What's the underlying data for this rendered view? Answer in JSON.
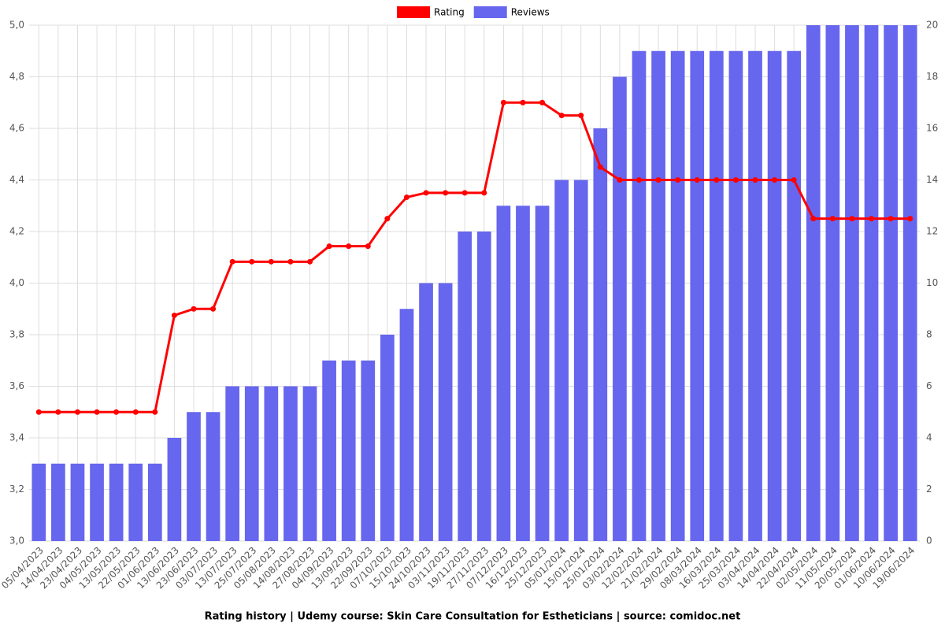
{
  "chart_data": {
    "type": "bar",
    "title": "Rating history | Udemy course: Skin Care Consultation for Estheticians | source: comidoc.net",
    "categories": [
      "05/04/2023",
      "14/04/2023",
      "23/04/2023",
      "04/05/2023",
      "13/05/2023",
      "22/05/2023",
      "01/06/2023",
      "13/06/2023",
      "23/06/2023",
      "03/07/2023",
      "13/07/2023",
      "25/07/2023",
      "05/08/2023",
      "14/08/2023",
      "27/08/2023",
      "04/09/2023",
      "13/09/2023",
      "22/09/2023",
      "07/10/2023",
      "15/10/2023",
      "24/10/2023",
      "03/11/2023",
      "19/11/2023",
      "27/11/2023",
      "07/12/2023",
      "16/12/2023",
      "25/12/2023",
      "05/01/2024",
      "15/01/2024",
      "25/01/2024",
      "03/02/2024",
      "12/02/2024",
      "21/02/2024",
      "29/02/2024",
      "08/03/2024",
      "16/03/2024",
      "25/03/2024",
      "03/04/2024",
      "14/04/2024",
      "22/04/2024",
      "02/05/2024",
      "11/05/2024",
      "20/05/2024",
      "01/06/2024",
      "10/06/2024",
      "19/06/2024"
    ],
    "series": [
      {
        "name": "Rating",
        "type": "line",
        "axis": "y",
        "color": "#ff0000",
        "values": [
          3.5,
          3.5,
          3.5,
          3.5,
          3.5,
          3.5,
          3.5,
          3.875,
          3.9,
          3.9,
          4.083,
          4.083,
          4.083,
          4.083,
          4.083,
          4.143,
          4.143,
          4.143,
          4.25,
          4.333,
          4.35,
          4.35,
          4.35,
          4.35,
          4.7,
          4.7,
          4.7,
          4.65,
          4.65,
          4.45,
          4.4,
          4.4,
          4.4,
          4.4,
          4.4,
          4.4,
          4.4,
          4.4,
          4.4,
          4.4,
          4.25,
          4.25,
          4.25,
          4.25,
          4.25,
          4.25
        ]
      },
      {
        "name": "Reviews",
        "type": "bar",
        "axis": "y2",
        "color": "#6666ee",
        "values": [
          3,
          3,
          3,
          3,
          3,
          3,
          3,
          4,
          5,
          5,
          6,
          6,
          6,
          6,
          6,
          7,
          7,
          7,
          8,
          9,
          10,
          10,
          12,
          12,
          13,
          13,
          13,
          14,
          14,
          16,
          18,
          19,
          19,
          19,
          19,
          19,
          19,
          19,
          19,
          19,
          20,
          20,
          20,
          20,
          20,
          20
        ]
      }
    ],
    "ylim": [
      3.0,
      5.0
    ],
    "yticks": [
      {
        "value": 3.0,
        "label": "3,0"
      },
      {
        "value": 3.2,
        "label": "3,2"
      },
      {
        "value": 3.4,
        "label": "3,4"
      },
      {
        "value": 3.6,
        "label": "3,6"
      },
      {
        "value": 3.8,
        "label": "3,8"
      },
      {
        "value": 4.0,
        "label": "4,0"
      },
      {
        "value": 4.2,
        "label": "4,2"
      },
      {
        "value": 4.4,
        "label": "4,4"
      },
      {
        "value": 4.6,
        "label": "4,6"
      },
      {
        "value": 4.8,
        "label": "4,8"
      },
      {
        "value": 5.0,
        "label": "5,0"
      }
    ],
    "y2lim": [
      0,
      20
    ],
    "y2ticks": [
      0,
      2,
      4,
      6,
      8,
      10,
      12,
      14,
      16,
      18,
      20
    ],
    "grid": true,
    "legend": "top"
  }
}
